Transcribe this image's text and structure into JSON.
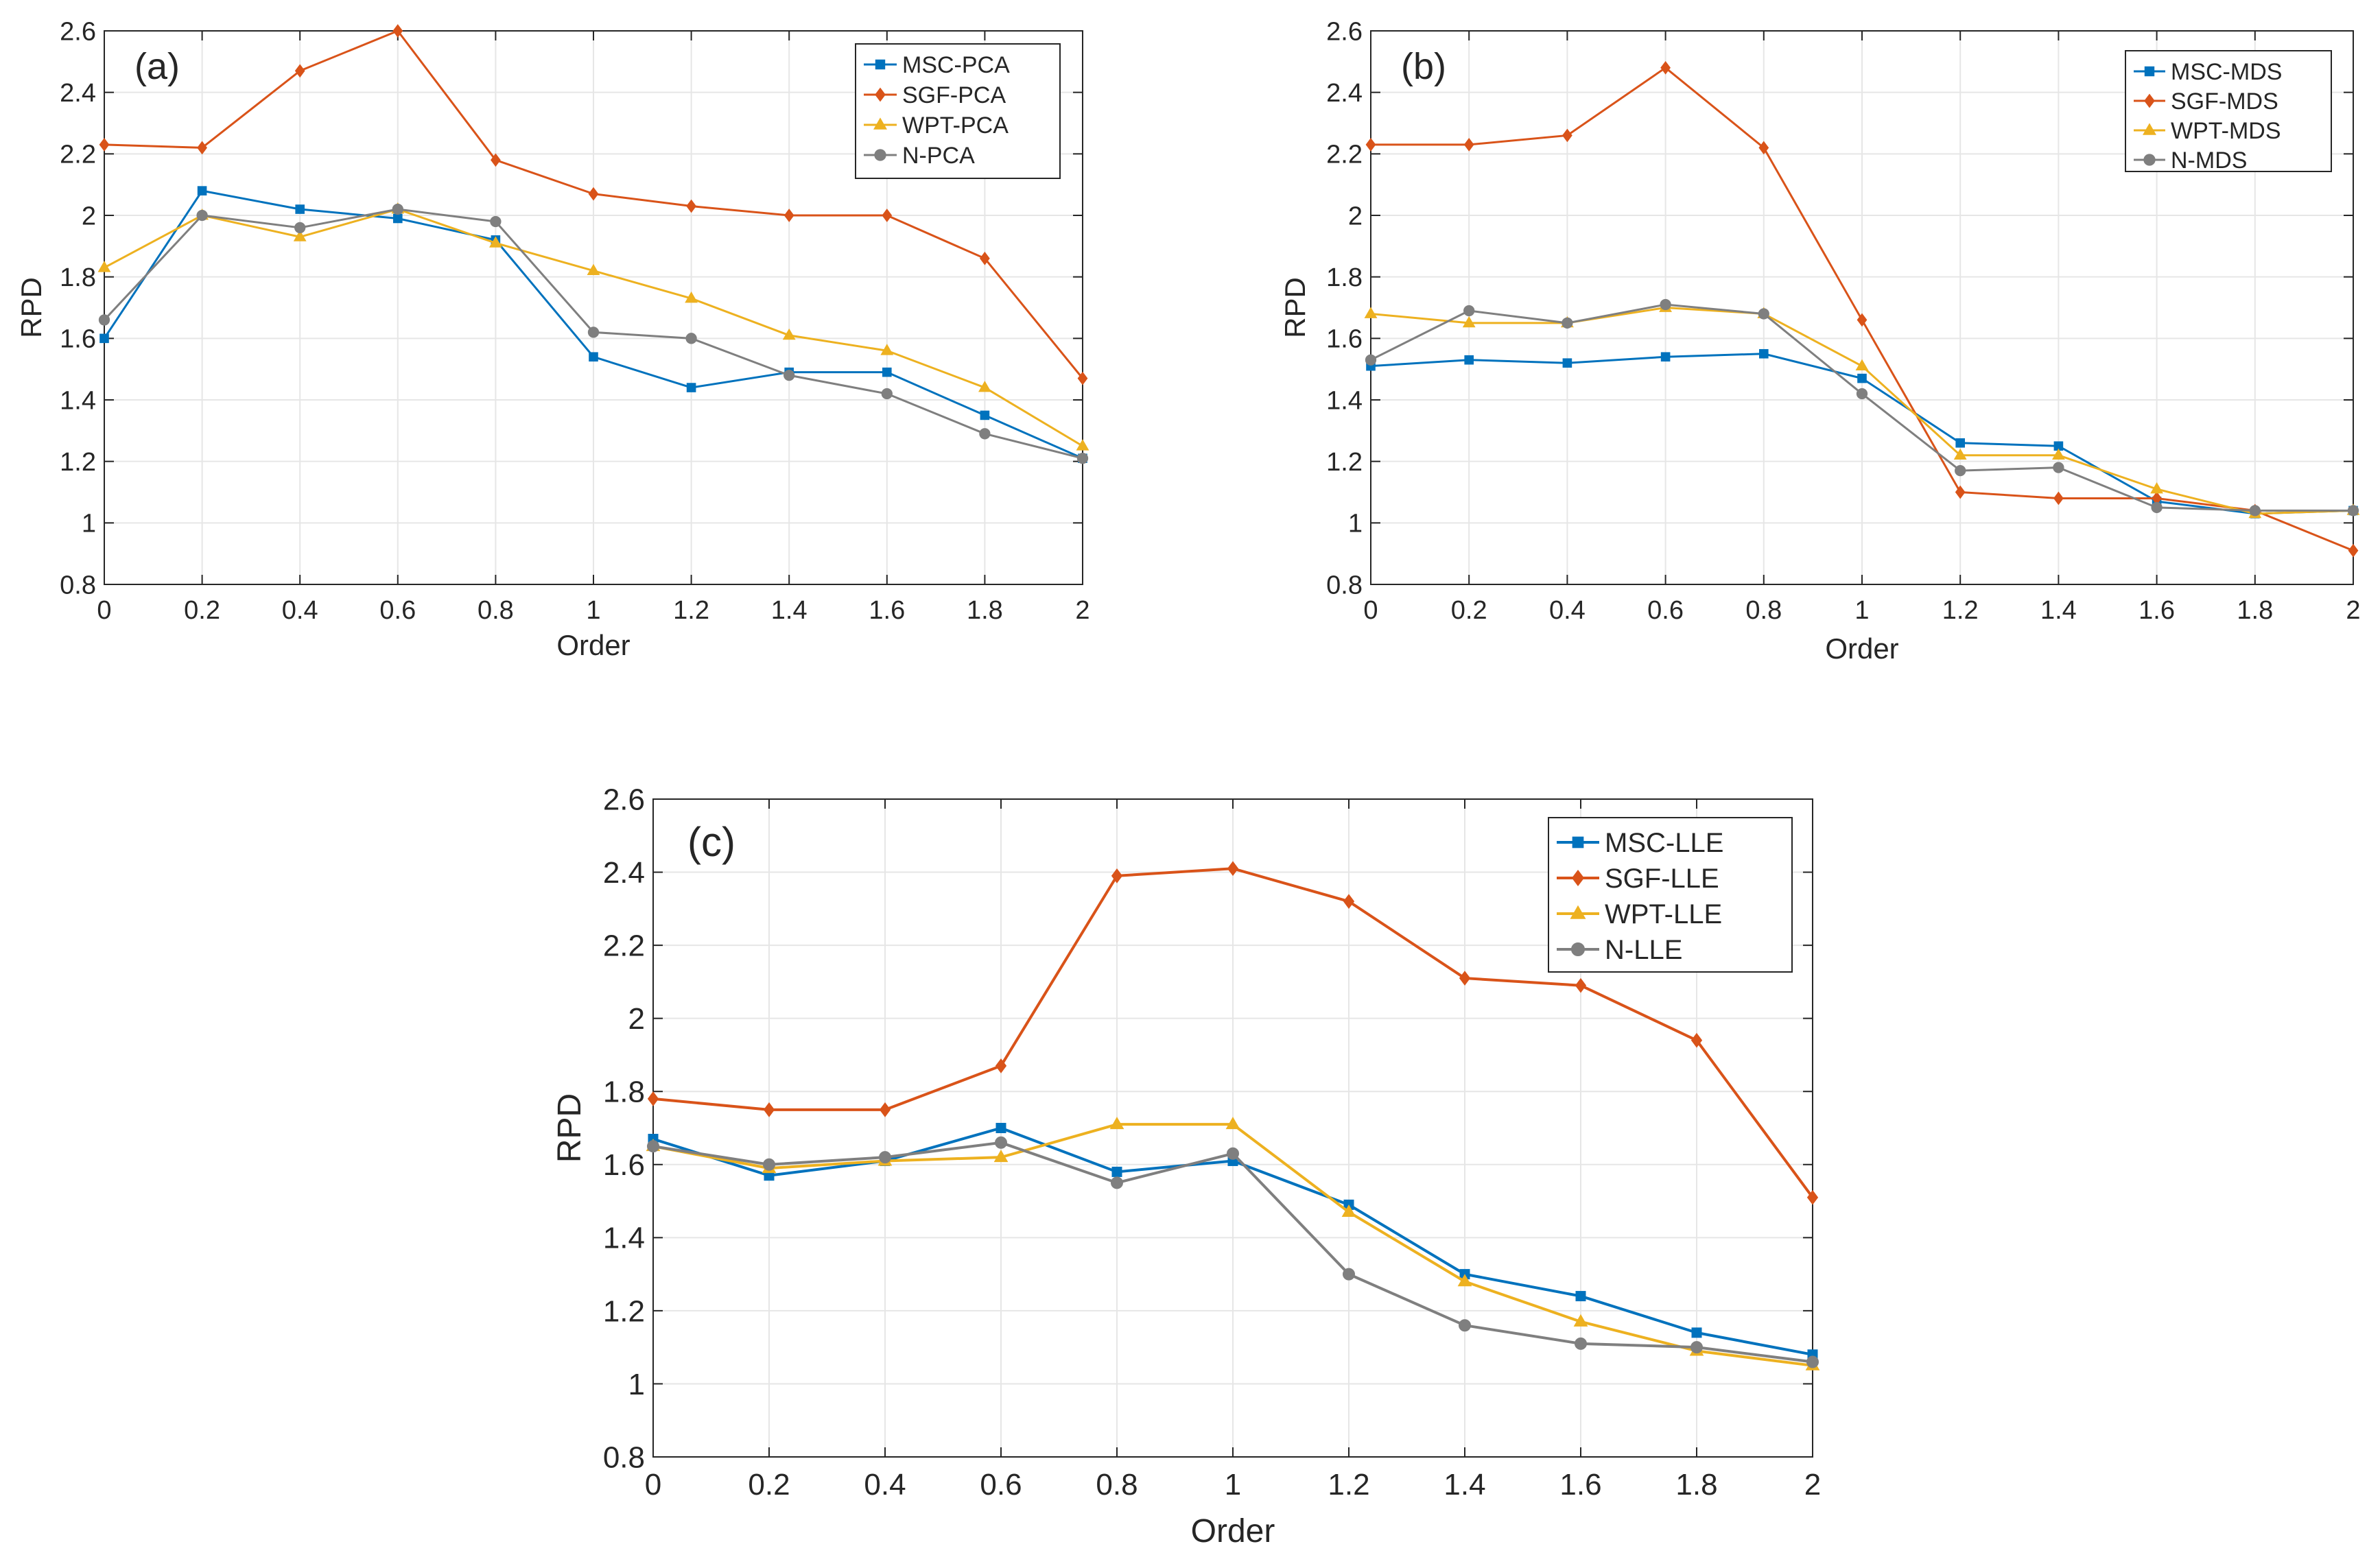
{
  "chart_data": [
    {
      "type": "line",
      "panel_label": "(a)",
      "title": "",
      "xlabel": "Order",
      "ylabel": "RPD",
      "x": [
        0,
        0.2,
        0.4,
        0.6,
        0.8,
        1,
        1.2,
        1.4,
        1.6,
        1.8,
        2
      ],
      "x_tick_labels": [
        "0",
        "0.2",
        "0.4",
        "0.6",
        "0.8",
        "1",
        "1.2",
        "1.4",
        "1.6",
        "1.8",
        "2"
      ],
      "xlim": [
        0,
        2
      ],
      "ylim": [
        0.8,
        2.6
      ],
      "y_ticks": [
        0.8,
        1,
        1.2,
        1.4,
        1.6,
        1.8,
        2,
        2.2,
        2.4,
        2.6
      ],
      "y_tick_labels": [
        "0.8",
        "1",
        "1.2",
        "1.4",
        "1.6",
        "1.8",
        "2",
        "2.2",
        "2.4",
        "2.6"
      ],
      "grid": true,
      "legend_position": "top-right",
      "series": [
        {
          "name": "MSC-PCA",
          "color": "#0072BD",
          "marker": "square",
          "values": [
            1.6,
            2.08,
            2.02,
            1.99,
            1.92,
            1.54,
            1.44,
            1.49,
            1.49,
            1.35,
            1.21
          ]
        },
        {
          "name": "SGF-PCA",
          "color": "#D95319",
          "marker": "diamond",
          "values": [
            2.23,
            2.22,
            2.47,
            2.6,
            2.18,
            2.07,
            2.03,
            2.0,
            2.0,
            1.86,
            1.47
          ]
        },
        {
          "name": "WPT-PCA",
          "color": "#EDB120",
          "marker": "triangle",
          "values": [
            1.83,
            2.0,
            1.93,
            2.02,
            1.91,
            1.82,
            1.73,
            1.61,
            1.56,
            1.44,
            1.25
          ]
        },
        {
          "name": "N-PCA",
          "color": "#7F7F7F",
          "marker": "circle",
          "values": [
            1.66,
            2.0,
            1.96,
            2.02,
            1.98,
            1.62,
            1.6,
            1.48,
            1.42,
            1.29,
            1.21
          ]
        }
      ]
    },
    {
      "type": "line",
      "panel_label": "(b)",
      "title": "",
      "xlabel": "Order",
      "ylabel": "RPD",
      "x": [
        0,
        0.2,
        0.4,
        0.6,
        0.8,
        1,
        1.2,
        1.4,
        1.6,
        1.8,
        2
      ],
      "x_tick_labels": [
        "0",
        "0.2",
        "0.4",
        "0.6",
        "0.8",
        "1",
        "1.2",
        "1.4",
        "1.6",
        "1.8",
        "2"
      ],
      "xlim": [
        0,
        2
      ],
      "ylim": [
        0.8,
        2.6
      ],
      "y_ticks": [
        0.8,
        1,
        1.2,
        1.4,
        1.6,
        1.8,
        2,
        2.2,
        2.4,
        2.6
      ],
      "y_tick_labels": [
        "0.8",
        "1",
        "1.2",
        "1.4",
        "1.6",
        "1.8",
        "2",
        "2.2",
        "2.4",
        "2.6"
      ],
      "grid": true,
      "legend_position": "top-right",
      "series": [
        {
          "name": "MSC-MDS",
          "color": "#0072BD",
          "marker": "square",
          "values": [
            1.51,
            1.53,
            1.52,
            1.54,
            1.55,
            1.47,
            1.26,
            1.25,
            1.07,
            1.03,
            1.04
          ]
        },
        {
          "name": "SGF-MDS",
          "color": "#D95319",
          "marker": "diamond",
          "values": [
            2.23,
            2.23,
            2.26,
            2.48,
            2.22,
            1.66,
            1.1,
            1.08,
            1.08,
            1.04,
            0.91
          ]
        },
        {
          "name": "WPT-MDS",
          "color": "#EDB120",
          "marker": "triangle",
          "values": [
            1.68,
            1.65,
            1.65,
            1.7,
            1.68,
            1.51,
            1.22,
            1.22,
            1.11,
            1.03,
            1.04
          ]
        },
        {
          "name": "N-MDS",
          "color": "#7F7F7F",
          "marker": "circle",
          "values": [
            1.53,
            1.69,
            1.65,
            1.71,
            1.68,
            1.42,
            1.17,
            1.18,
            1.05,
            1.04,
            1.04
          ]
        }
      ]
    },
    {
      "type": "line",
      "panel_label": "(c)",
      "title": "",
      "xlabel": "Order",
      "ylabel": "RPD",
      "x": [
        0,
        0.2,
        0.4,
        0.6,
        0.8,
        1,
        1.2,
        1.4,
        1.6,
        1.8,
        2
      ],
      "x_tick_labels": [
        "0",
        "0.2",
        "0.4",
        "0.6",
        "0.8",
        "1",
        "1.2",
        "1.4",
        "1.6",
        "1.8",
        "2"
      ],
      "xlim": [
        0,
        2
      ],
      "ylim": [
        0.8,
        2.6
      ],
      "y_ticks": [
        0.8,
        1,
        1.2,
        1.4,
        1.6,
        1.8,
        2,
        2.2,
        2.4,
        2.6
      ],
      "y_tick_labels": [
        "0.8",
        "1",
        "1.2",
        "1.4",
        "1.6",
        "1.8",
        "2",
        "2.2",
        "2.4",
        "2.6"
      ],
      "grid": true,
      "legend_position": "top-right",
      "series": [
        {
          "name": "MSC-LLE",
          "color": "#0072BD",
          "marker": "square",
          "values": [
            1.67,
            1.57,
            1.61,
            1.7,
            1.58,
            1.61,
            1.49,
            1.3,
            1.24,
            1.14,
            1.08
          ]
        },
        {
          "name": "SGF-LLE",
          "color": "#D95319",
          "marker": "diamond",
          "values": [
            1.78,
            1.75,
            1.75,
            1.87,
            2.39,
            2.41,
            2.32,
            2.11,
            2.09,
            1.94,
            1.51
          ]
        },
        {
          "name": "WPT-LLE",
          "color": "#EDB120",
          "marker": "triangle",
          "values": [
            1.65,
            1.59,
            1.61,
            1.62,
            1.71,
            1.71,
            1.47,
            1.28,
            1.17,
            1.09,
            1.05
          ]
        },
        {
          "name": "N-LLE",
          "color": "#7F7F7F",
          "marker": "circle",
          "values": [
            1.65,
            1.6,
            1.62,
            1.66,
            1.55,
            1.63,
            1.3,
            1.16,
            1.11,
            1.1,
            1.06
          ]
        }
      ]
    }
  ]
}
